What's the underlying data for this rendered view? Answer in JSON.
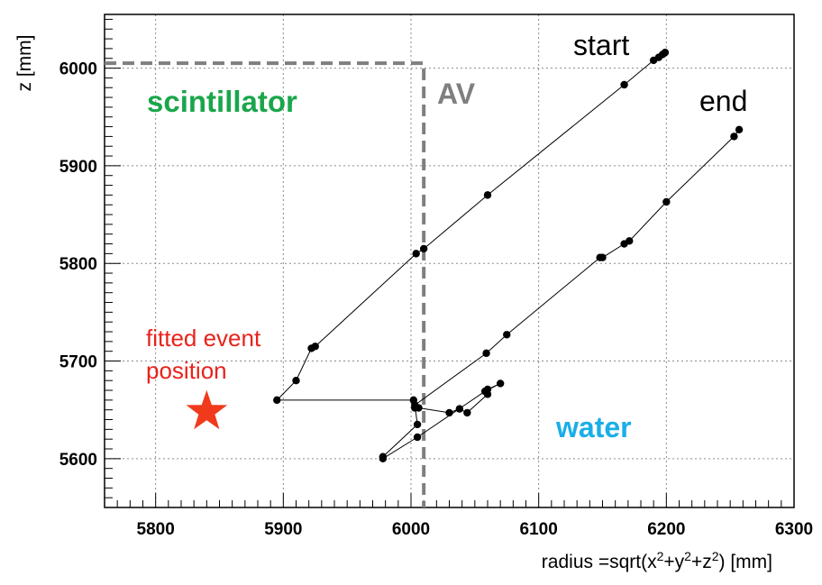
{
  "chart_data": {
    "type": "scatter",
    "title": "",
    "xlabel_parts": {
      "a": "radius =sqrt(x",
      "b": "+y",
      "c": "+z",
      "d": ") [mm]",
      "sup": "2"
    },
    "ylabel": "z [mm]",
    "xlim": [
      5760,
      6300
    ],
    "ylim": [
      5550,
      6055
    ],
    "xticks": [
      5800,
      5900,
      6000,
      6100,
      6200,
      6300
    ],
    "yticks": [
      5600,
      5700,
      5800,
      5900,
      6000
    ],
    "grid": true,
    "series": [
      {
        "points": [
          [
            6199,
            6016
          ],
          [
            6197,
            6014
          ],
          [
            6194,
            6011
          ],
          [
            6190,
            6008
          ],
          [
            6167,
            5983
          ],
          [
            6060,
            5870
          ],
          [
            6010,
            5815
          ],
          [
            6004,
            5810
          ],
          [
            5925,
            5715
          ],
          [
            5922,
            5713
          ],
          [
            5910,
            5680
          ],
          [
            5895,
            5660
          ],
          [
            6002,
            5660
          ],
          [
            6003,
            5652
          ],
          [
            6006,
            5652
          ],
          [
            6030,
            5647
          ],
          [
            6038,
            5651
          ],
          [
            6044,
            5647
          ],
          [
            6060,
            5666
          ],
          [
            6060,
            5671
          ],
          [
            6070,
            5677
          ],
          [
            6058,
            5669
          ],
          [
            6005,
            5622
          ],
          [
            5978,
            5600
          ],
          [
            5978,
            5602
          ],
          [
            6005,
            5635
          ],
          [
            6003,
            5655
          ],
          [
            6059,
            5708
          ],
          [
            6075,
            5727
          ],
          [
            6148,
            5806
          ],
          [
            6150,
            5806
          ],
          [
            6167,
            5820
          ],
          [
            6171,
            5823
          ],
          [
            6200,
            5863
          ],
          [
            6253,
            5930
          ],
          [
            6257,
            5937
          ]
        ]
      }
    ],
    "av_boundary": {
      "label": "AV",
      "radius": 6010,
      "z": 6005
    },
    "annotations": {
      "start": "start",
      "end": "end",
      "scintillator": "scintillator",
      "water": "water",
      "fitted_line1": "fitted event",
      "fitted_line2": "position"
    },
    "fitted_event": {
      "x": 5840,
      "y": 5648
    },
    "colors": {
      "scintillator": "#1aa64b",
      "water": "#1aaee8",
      "fitted": "#e8231b",
      "star": "#f03a1c",
      "av": "#7f7f7f"
    }
  }
}
